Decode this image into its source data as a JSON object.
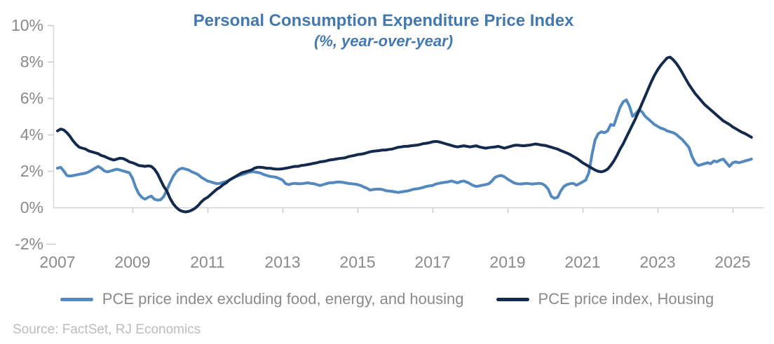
{
  "title": "Personal Consumption Expenditure Price Index",
  "subtitle": "(%, year-over-year)",
  "source": "Source: FactSet, RJ Economics",
  "colors": {
    "title_text": "#4379ae",
    "axis_text": "#8a8a8a",
    "legend_text": "#8a8a8a",
    "source_text": "#bcbcbc",
    "gridline": "#d4d4d4",
    "light_series": "#5389bf",
    "dark_series": "#142a4d"
  },
  "legend": [
    {
      "label": "PCE price index excluding food, energy, and housing",
      "color": "#5389bf"
    },
    {
      "label": "PCE price index, Housing",
      "color": "#142a4d"
    }
  ],
  "chart_data": {
    "type": "line",
    "title": "Personal Consumption Expenditure Price Index",
    "subtitle": "(%, year-over-year)",
    "grid": "only 0% baseline",
    "legend_position": "bottom",
    "x_axis": {
      "ticks": [
        "2007",
        "2009",
        "2011",
        "2013",
        "2015",
        "2017",
        "2019",
        "2021",
        "2023",
        "2025"
      ],
      "range": [
        2007,
        2025.7
      ]
    },
    "y_axis": {
      "ticks": [
        "10%",
        "8%",
        "6%",
        "4%",
        "2%",
        "0%",
        "-2%"
      ],
      "tick_values": [
        10,
        8,
        6,
        4,
        2,
        0,
        -2
      ],
      "range": [
        -2,
        10
      ],
      "unit": "%"
    },
    "series": [
      {
        "name": "PCE price index excluding food, energy, and housing",
        "color": "#5389bf",
        "start_year": 2007,
        "frequency": "monthly",
        "values": [
          2.15,
          2.2,
          2.0,
          1.75,
          1.72,
          1.75,
          1.78,
          1.82,
          1.85,
          1.88,
          1.95,
          2.05,
          2.15,
          2.25,
          2.15,
          2.0,
          1.95,
          2.0,
          2.05,
          2.1,
          2.05,
          2.0,
          1.95,
          1.9,
          1.6,
          1.1,
          0.75,
          0.55,
          0.45,
          0.55,
          0.62,
          0.45,
          0.4,
          0.42,
          0.6,
          0.95,
          1.35,
          1.7,
          1.95,
          2.1,
          2.15,
          2.1,
          2.05,
          1.95,
          1.88,
          1.8,
          1.65,
          1.55,
          1.45,
          1.4,
          1.35,
          1.3,
          1.32,
          1.38,
          1.42,
          1.5,
          1.6,
          1.68,
          1.75,
          1.8,
          1.85,
          1.92,
          1.95,
          1.95,
          1.92,
          1.88,
          1.8,
          1.75,
          1.7,
          1.68,
          1.65,
          1.58,
          1.5,
          1.3,
          1.25,
          1.3,
          1.32,
          1.3,
          1.3,
          1.32,
          1.35,
          1.32,
          1.3,
          1.25,
          1.2,
          1.25,
          1.3,
          1.35,
          1.35,
          1.38,
          1.4,
          1.38,
          1.35,
          1.32,
          1.3,
          1.28,
          1.25,
          1.2,
          1.12,
          1.05,
          0.95,
          0.98,
          1.0,
          1.0,
          0.98,
          0.92,
          0.9,
          0.88,
          0.85,
          0.82,
          0.85,
          0.88,
          0.9,
          0.95,
          1.0,
          1.02,
          1.05,
          1.1,
          1.15,
          1.18,
          1.2,
          1.28,
          1.32,
          1.35,
          1.38,
          1.4,
          1.45,
          1.4,
          1.35,
          1.42,
          1.45,
          1.38,
          1.3,
          1.2,
          1.15,
          1.18,
          1.22,
          1.25,
          1.3,
          1.45,
          1.65,
          1.72,
          1.75,
          1.68,
          1.55,
          1.45,
          1.35,
          1.3,
          1.28,
          1.3,
          1.32,
          1.3,
          1.28,
          1.3,
          1.32,
          1.3,
          1.2,
          1.0,
          0.6,
          0.5,
          0.55,
          0.9,
          1.15,
          1.25,
          1.3,
          1.32,
          1.22,
          1.3,
          1.4,
          1.5,
          1.9,
          2.9,
          3.7,
          4.05,
          4.15,
          4.1,
          4.2,
          4.55,
          4.5,
          5.0,
          5.5,
          5.8,
          5.9,
          5.55,
          5.0,
          5.15,
          5.35,
          5.25,
          5.0,
          4.85,
          4.7,
          4.55,
          4.45,
          4.35,
          4.3,
          4.2,
          4.15,
          4.1,
          4.0,
          3.85,
          3.7,
          3.5,
          3.3,
          2.8,
          2.45,
          2.3,
          2.35,
          2.4,
          2.45,
          2.4,
          2.55,
          2.5,
          2.6,
          2.65,
          2.45,
          2.25,
          2.45,
          2.5,
          2.45,
          2.5,
          2.55,
          2.6,
          2.65
        ]
      },
      {
        "name": "PCE price index, Housing",
        "color": "#142a4d",
        "start_year": 2007,
        "frequency": "monthly",
        "values": [
          4.2,
          4.3,
          4.25,
          4.1,
          3.9,
          3.65,
          3.45,
          3.3,
          3.25,
          3.2,
          3.1,
          3.05,
          3.0,
          2.95,
          2.85,
          2.8,
          2.72,
          2.65,
          2.6,
          2.65,
          2.7,
          2.68,
          2.6,
          2.5,
          2.45,
          2.38,
          2.3,
          2.28,
          2.25,
          2.28,
          2.25,
          2.1,
          1.85,
          1.5,
          1.15,
          0.9,
          0.5,
          0.2,
          0.0,
          -0.15,
          -0.22,
          -0.25,
          -0.22,
          -0.15,
          -0.05,
          0.1,
          0.3,
          0.45,
          0.55,
          0.7,
          0.85,
          1.0,
          1.1,
          1.25,
          1.35,
          1.5,
          1.6,
          1.7,
          1.8,
          1.9,
          1.95,
          2.0,
          2.05,
          2.15,
          2.2,
          2.2,
          2.18,
          2.15,
          2.15,
          2.12,
          2.1,
          2.1,
          2.12,
          2.15,
          2.18,
          2.22,
          2.25,
          2.25,
          2.3,
          2.32,
          2.35,
          2.38,
          2.42,
          2.45,
          2.5,
          2.52,
          2.55,
          2.6,
          2.62,
          2.65,
          2.68,
          2.7,
          2.72,
          2.78,
          2.82,
          2.85,
          2.9,
          2.92,
          2.95,
          3.0,
          3.05,
          3.08,
          3.1,
          3.12,
          3.15,
          3.15,
          3.18,
          3.2,
          3.25,
          3.3,
          3.32,
          3.35,
          3.35,
          3.38,
          3.4,
          3.42,
          3.45,
          3.5,
          3.52,
          3.55,
          3.6,
          3.62,
          3.6,
          3.55,
          3.5,
          3.45,
          3.4,
          3.35,
          3.32,
          3.35,
          3.38,
          3.35,
          3.32,
          3.35,
          3.38,
          3.32,
          3.28,
          3.25,
          3.28,
          3.3,
          3.32,
          3.35,
          3.3,
          3.25,
          3.3,
          3.35,
          3.4,
          3.42,
          3.4,
          3.38,
          3.4,
          3.42,
          3.45,
          3.48,
          3.45,
          3.42,
          3.4,
          3.35,
          3.3,
          3.25,
          3.2,
          3.12,
          3.05,
          2.98,
          2.9,
          2.8,
          2.7,
          2.58,
          2.45,
          2.35,
          2.25,
          2.15,
          2.05,
          1.98,
          1.95,
          2.0,
          2.1,
          2.3,
          2.55,
          2.85,
          3.2,
          3.5,
          3.85,
          4.2,
          4.55,
          4.9,
          5.3,
          5.7,
          6.1,
          6.5,
          6.9,
          7.25,
          7.55,
          7.8,
          8.0,
          8.2,
          8.25,
          8.1,
          7.9,
          7.65,
          7.35,
          7.05,
          6.75,
          6.5,
          6.25,
          6.05,
          5.85,
          5.65,
          5.5,
          5.35,
          5.2,
          5.05,
          4.9,
          4.75,
          4.65,
          4.55,
          4.42,
          4.32,
          4.22,
          4.12,
          4.05,
          3.95,
          3.85
        ]
      }
    ]
  }
}
